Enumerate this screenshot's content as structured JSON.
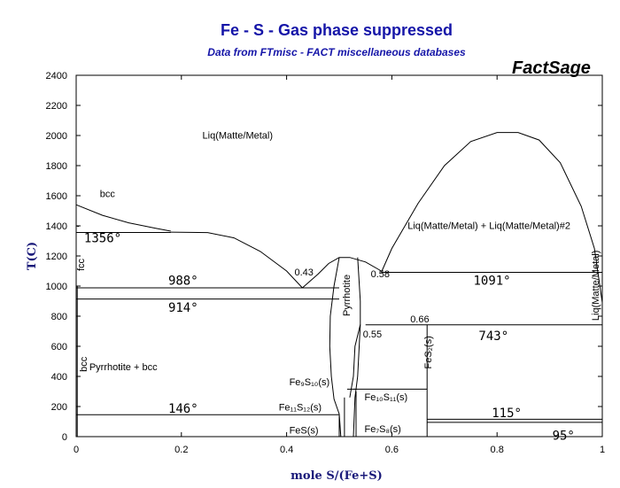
{
  "chart_data": {
    "type": "phase-diagram",
    "title": "Fe - S -  Gas phase suppressed",
    "subtitle": "Data from FTmisc - FACT miscellaneous databases",
    "brand": "FactSage",
    "xlabel": "mole S/(Fe+S)",
    "ylabel": "T(C)",
    "xlim": [
      0,
      1
    ],
    "ylim": [
      0,
      2400
    ],
    "x_ticks": [
      {
        "v": 0,
        "label": "0"
      },
      {
        "v": 0.2,
        "label": "0.2"
      },
      {
        "v": 0.4,
        "label": "0.4"
      },
      {
        "v": 0.6,
        "label": "0.6"
      },
      {
        "v": 0.8,
        "label": "0.8"
      },
      {
        "v": 1,
        "label": "1"
      }
    ],
    "y_ticks": [
      {
        "v": 0,
        "label": "0"
      },
      {
        "v": 200,
        "label": "200"
      },
      {
        "v": 400,
        "label": "400"
      },
      {
        "v": 600,
        "label": "600"
      },
      {
        "v": 800,
        "label": "800"
      },
      {
        "v": 1000,
        "label": "1000"
      },
      {
        "v": 1200,
        "label": "1200"
      },
      {
        "v": 1400,
        "label": "1400"
      },
      {
        "v": 1600,
        "label": "1600"
      },
      {
        "v": 1800,
        "label": "1800"
      },
      {
        "v": 2000,
        "label": "2000"
      },
      {
        "v": 2200,
        "label": "2200"
      },
      {
        "v": 2400,
        "label": "2400"
      }
    ],
    "boundaries": [
      {
        "name": "bcc-liquidus",
        "points": [
          [
            0,
            1540
          ],
          [
            0.05,
            1470
          ],
          [
            0.1,
            1420
          ],
          [
            0.15,
            1385
          ],
          [
            0.18,
            1365
          ]
        ]
      },
      {
        "name": "matte-liquidus-left",
        "points": [
          [
            0.18,
            1358
          ],
          [
            0.25,
            1355
          ],
          [
            0.3,
            1320
          ],
          [
            0.35,
            1230
          ],
          [
            0.4,
            1100
          ],
          [
            0.43,
            988
          ]
        ]
      },
      {
        "name": "pyrrhotite-liquidus",
        "points": [
          [
            0.43,
            988
          ],
          [
            0.46,
            1080
          ],
          [
            0.48,
            1150
          ],
          [
            0.5,
            1190
          ],
          [
            0.52,
            1190
          ],
          [
            0.55,
            1160
          ],
          [
            0.58,
            1100
          ]
        ]
      },
      {
        "name": "miscibility-gap",
        "points": [
          [
            0.58,
            1091
          ],
          [
            0.6,
            1250
          ],
          [
            0.65,
            1550
          ],
          [
            0.7,
            1800
          ],
          [
            0.75,
            1960
          ],
          [
            0.8,
            2020
          ],
          [
            0.84,
            2020
          ],
          [
            0.88,
            1970
          ],
          [
            0.92,
            1820
          ],
          [
            0.96,
            1530
          ],
          [
            0.985,
            1250
          ],
          [
            1,
            890
          ]
        ]
      },
      {
        "name": "fcc-boundary",
        "points": [
          [
            0,
            1400
          ],
          [
            0.005,
            1395
          ]
        ]
      },
      {
        "name": "pyrrhotite-left",
        "points": [
          [
            0.5,
            1190
          ],
          [
            0.49,
            1000
          ],
          [
            0.483,
            800
          ],
          [
            0.482,
            600
          ],
          [
            0.485,
            400
          ],
          [
            0.49,
            250
          ],
          [
            0.5,
            150
          ],
          [
            0.503,
            0
          ]
        ]
      },
      {
        "name": "pyrrhotite-right",
        "points": [
          [
            0.535,
            1190
          ],
          [
            0.54,
            900
          ],
          [
            0.54,
            744
          ],
          [
            0.535,
            400
          ],
          [
            0.53,
            260
          ],
          [
            0.527,
            0
          ]
        ]
      },
      {
        "name": "pyrrhotite-lower-right",
        "points": [
          [
            0.54,
            744
          ],
          [
            0.53,
            600
          ],
          [
            0.527,
            400
          ],
          [
            0.52,
            260
          ]
        ]
      },
      {
        "name": "iso-1356",
        "points": [
          [
            0,
            1356
          ],
          [
            0.18,
            1356
          ]
        ]
      },
      {
        "name": "iso-988",
        "points": [
          [
            0,
            988
          ],
          [
            0.5,
            988
          ]
        ]
      },
      {
        "name": "iso-914",
        "points": [
          [
            0,
            914
          ],
          [
            0.5,
            914
          ]
        ]
      },
      {
        "name": "iso-1091",
        "points": [
          [
            0.58,
            1091
          ],
          [
            1,
            1091
          ]
        ]
      },
      {
        "name": "iso-743",
        "points": [
          [
            0.55,
            743
          ],
          [
            1,
            743
          ]
        ]
      },
      {
        "name": "iso-146",
        "points": [
          [
            0,
            146
          ],
          [
            0.5,
            146
          ]
        ]
      },
      {
        "name": "iso-115",
        "points": [
          [
            0.667,
            115
          ],
          [
            1,
            115
          ]
        ]
      },
      {
        "name": "iso-95",
        "points": [
          [
            0.667,
            95
          ],
          [
            1,
            95
          ]
        ]
      },
      {
        "name": "FeS2-line",
        "points": [
          [
            0.667,
            0
          ],
          [
            0.667,
            743
          ]
        ]
      },
      {
        "name": "Fe10S11-box-top",
        "points": [
          [
            0.528,
            315
          ],
          [
            0.667,
            315
          ]
        ]
      },
      {
        "name": "Fe9S10-box",
        "points": [
          [
            0.515,
            315
          ],
          [
            0.53,
            315
          ]
        ]
      },
      {
        "name": "Fe11S12-line",
        "points": [
          [
            0.51,
            260
          ],
          [
            0.51,
            0
          ]
        ]
      },
      {
        "name": "Fe7S8-line",
        "points": [
          [
            0.532,
            300
          ],
          [
            0.532,
            0
          ]
        ]
      },
      {
        "name": "FeS-line",
        "points": [
          [
            0.5,
            140
          ],
          [
            0.5,
            0
          ]
        ]
      },
      {
        "name": "bcc-fcc-lowT",
        "points": [
          [
            0.002,
            0
          ],
          [
            0.002,
            1000
          ]
        ]
      }
    ],
    "annotations": [
      {
        "text": "Liq(Matte/Metal)",
        "x": 0.24,
        "y": 1980
      },
      {
        "text": "Liq(Matte/Metal) + Liq(Matte/Metal)#2",
        "x": 0.63,
        "y": 1380
      },
      {
        "text": "bcc",
        "x": 0.045,
        "y": 1590
      },
      {
        "text": "fcc",
        "x": 0.015,
        "y": 1100,
        "rotate": -90
      },
      {
        "text": "bcc",
        "x": 0.02,
        "y": 430,
        "rotate": -90
      },
      {
        "text": "Pyrrhotite + bcc",
        "x": 0.025,
        "y": 440
      },
      {
        "text": "Pyrrhotite",
        "x": 0.52,
        "y": 800,
        "rotate": -90
      },
      {
        "text": "FeS₂(s)",
        "x": 0.675,
        "y": 450,
        "rotate": -90
      },
      {
        "text": "Liq(Matte/Metal)",
        "x": 0.993,
        "y": 770,
        "rotate": -90
      },
      {
        "text": "0.43",
        "x": 0.415,
        "y": 1070
      },
      {
        "text": "0.58",
        "x": 0.56,
        "y": 1060
      },
      {
        "text": "0.55",
        "x": 0.545,
        "y": 660
      },
      {
        "text": "0.66",
        "x": 0.635,
        "y": 760
      },
      {
        "text": "1356°",
        "x": 0.015,
        "y": 1290,
        "style": "temp"
      },
      {
        "text": "988°",
        "x": 0.175,
        "y": 1010,
        "style": "temp"
      },
      {
        "text": "914°",
        "x": 0.175,
        "y": 830,
        "style": "temp"
      },
      {
        "text": "1091°",
        "x": 0.755,
        "y": 1010,
        "style": "temp"
      },
      {
        "text": "743°",
        "x": 0.765,
        "y": 640,
        "style": "temp"
      },
      {
        "text": "146°",
        "x": 0.175,
        "y": 160,
        "style": "temp"
      },
      {
        "text": "115°",
        "x": 0.79,
        "y": 130,
        "style": "temp"
      },
      {
        "text": "95°",
        "x": 0.905,
        "y": -20,
        "style": "temp"
      },
      {
        "text": "Fe₉S₁₀(s)",
        "x": 0.405,
        "y": 340
      },
      {
        "text": "Fe₁₁S₁₂(s)",
        "x": 0.385,
        "y": 175
      },
      {
        "text": "FeS(s)",
        "x": 0.405,
        "y": 20
      },
      {
        "text": "Fe₁₀S₁₁(s)",
        "x": 0.548,
        "y": 240
      },
      {
        "text": "Fe₇S₈(s)",
        "x": 0.548,
        "y": 30
      }
    ]
  }
}
